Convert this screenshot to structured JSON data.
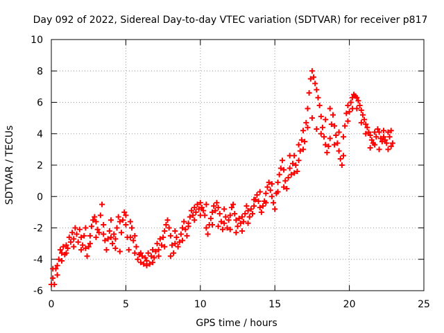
{
  "chart_data": {
    "type": "scatter",
    "title": "Day 092 of 2022, Sidereal Day-to-day VTEC variation (SDTVAR) for receiver p817",
    "xlabel": "GPS time / hours",
    "ylabel": "SDTVAR / TECUs",
    "xlim": [
      0,
      25
    ],
    "ylim": [
      -6,
      10
    ],
    "xticks": [
      0,
      5,
      10,
      15,
      20,
      25
    ],
    "yticks": [
      -6,
      -4,
      -2,
      0,
      2,
      4,
      6,
      8,
      10
    ],
    "grid": true,
    "marker": "+",
    "color": "#ff0000",
    "series": [
      {
        "name": "SDTVAR",
        "points": [
          [
            0.0,
            -5.6
          ],
          [
            0.1,
            -5.2
          ],
          [
            0.2,
            -5.6
          ],
          [
            0.3,
            -4.6
          ],
          [
            0.4,
            -4.4
          ],
          [
            0.5,
            -4.0
          ],
          [
            0.6,
            -3.4
          ],
          [
            0.7,
            -3.6
          ],
          [
            0.8,
            -3.2
          ],
          [
            0.9,
            -3.7
          ],
          [
            1.0,
            -3.1
          ],
          [
            1.1,
            -3.3
          ],
          [
            1.2,
            -2.6
          ],
          [
            1.3,
            -2.9
          ],
          [
            1.4,
            -2.3
          ],
          [
            1.5,
            -2.7
          ],
          [
            1.6,
            -2.0
          ],
          [
            1.7,
            -2.4
          ],
          [
            1.8,
            -2.9
          ],
          [
            1.9,
            -2.1
          ],
          [
            2.0,
            -2.6
          ],
          [
            2.1,
            -3.1
          ],
          [
            2.2,
            -2.5
          ],
          [
            2.3,
            -3.3
          ],
          [
            2.4,
            -3.8
          ],
          [
            2.5,
            -3.2
          ],
          [
            2.6,
            -2.5
          ],
          [
            2.7,
            -1.9
          ],
          [
            2.8,
            -1.5
          ],
          [
            2.9,
            -1.3
          ],
          [
            3.0,
            -1.6
          ],
          [
            3.1,
            -2.1
          ],
          [
            3.2,
            -2.3
          ],
          [
            3.3,
            -1.2
          ],
          [
            3.4,
            -0.5
          ],
          [
            3.5,
            -2.4
          ],
          [
            3.6,
            -2.8
          ],
          [
            3.7,
            -3.4
          ],
          [
            3.8,
            -2.7
          ],
          [
            3.9,
            -2.2
          ],
          [
            4.0,
            -2.6
          ],
          [
            4.1,
            -3.0
          ],
          [
            4.2,
            -2.4
          ],
          [
            4.3,
            -2.7
          ],
          [
            4.4,
            -2.0
          ],
          [
            4.5,
            -1.3
          ],
          [
            4.6,
            -1.6
          ],
          [
            4.7,
            -2.3
          ],
          [
            4.8,
            -1.5
          ],
          [
            4.9,
            -1.0
          ],
          [
            5.0,
            -1.8
          ],
          [
            5.1,
            -2.6
          ],
          [
            5.2,
            -3.4
          ],
          [
            5.3,
            -2.6
          ],
          [
            5.4,
            -2.0
          ],
          [
            5.5,
            -2.8
          ],
          [
            5.6,
            -3.6
          ],
          [
            5.7,
            -3.2
          ],
          [
            5.8,
            -4.0
          ],
          [
            5.9,
            -3.7
          ],
          [
            6.0,
            -4.2
          ],
          [
            6.1,
            -3.8
          ],
          [
            6.2,
            -4.3
          ],
          [
            6.3,
            -3.9
          ],
          [
            6.4,
            -4.1
          ],
          [
            6.5,
            -3.6
          ],
          [
            6.6,
            -4.3
          ],
          [
            6.7,
            -3.8
          ],
          [
            6.8,
            -3.4
          ],
          [
            6.9,
            -3.9
          ],
          [
            7.0,
            -3.5
          ],
          [
            7.1,
            -3.0
          ],
          [
            7.2,
            -3.4
          ],
          [
            7.3,
            -2.7
          ],
          [
            7.4,
            -3.1
          ],
          [
            7.5,
            -2.6
          ],
          [
            7.6,
            -2.2
          ],
          [
            7.7,
            -1.8
          ],
          [
            7.8,
            -1.5
          ],
          [
            7.9,
            -2.0
          ],
          [
            8.0,
            -2.5
          ],
          [
            8.1,
            -3.1
          ],
          [
            8.2,
            -3.6
          ],
          [
            8.3,
            -3.0
          ],
          [
            8.4,
            -2.6
          ],
          [
            8.5,
            -3.2
          ],
          [
            8.6,
            -2.9
          ],
          [
            8.7,
            -2.4
          ],
          [
            8.8,
            -2.0
          ],
          [
            8.9,
            -1.6
          ],
          [
            9.0,
            -2.1
          ],
          [
            9.1,
            -2.5
          ],
          [
            9.2,
            -1.7
          ],
          [
            9.3,
            -1.3
          ],
          [
            9.4,
            -0.9
          ],
          [
            9.5,
            -1.2
          ],
          [
            9.6,
            -0.7
          ],
          [
            9.7,
            -1.0
          ],
          [
            9.8,
            -0.5
          ],
          [
            9.9,
            -0.8
          ],
          [
            10.0,
            -0.4
          ],
          [
            10.1,
            -0.7
          ],
          [
            10.2,
            -0.9
          ],
          [
            10.3,
            -1.2
          ],
          [
            10.4,
            -2.0
          ],
          [
            10.5,
            -2.4
          ],
          [
            10.6,
            -1.8
          ],
          [
            10.7,
            -1.4
          ],
          [
            10.8,
            -1.0
          ],
          [
            10.9,
            -0.6
          ],
          [
            11.0,
            -0.9
          ],
          [
            11.1,
            -0.4
          ],
          [
            11.2,
            -0.7
          ],
          [
            11.3,
            -1.1
          ],
          [
            11.4,
            -1.6
          ],
          [
            11.5,
            -2.1
          ],
          [
            11.6,
            -1.7
          ],
          [
            11.7,
            -1.3
          ],
          [
            11.8,
            -2.0
          ],
          [
            11.9,
            -1.5
          ],
          [
            12.0,
            -1.2
          ],
          [
            12.1,
            -0.7
          ],
          [
            12.2,
            -0.5
          ],
          [
            12.3,
            -1.1
          ],
          [
            12.4,
            -1.5
          ],
          [
            12.5,
            -1.9
          ],
          [
            12.6,
            -1.4
          ],
          [
            12.7,
            -1.7
          ],
          [
            12.8,
            -2.2
          ],
          [
            12.9,
            -1.6
          ],
          [
            13.0,
            -1.1
          ],
          [
            13.1,
            -0.6
          ],
          [
            13.2,
            -0.9
          ],
          [
            13.3,
            -1.3
          ],
          [
            13.4,
            -0.8
          ],
          [
            13.5,
            -1.1
          ],
          [
            13.6,
            -0.6
          ],
          [
            13.7,
            -0.2
          ],
          [
            13.8,
            0.1
          ],
          [
            13.9,
            -0.3
          ],
          [
            14.0,
            -0.7
          ],
          [
            14.1,
            -1.0
          ],
          [
            14.2,
            -0.6
          ],
          [
            14.3,
            -0.3
          ],
          [
            14.4,
            0.2
          ],
          [
            14.5,
            0.6
          ],
          [
            14.6,
            0.9
          ],
          [
            14.7,
            0.4
          ],
          [
            14.8,
            0.0
          ],
          [
            14.9,
            -0.4
          ],
          [
            15.0,
            -0.8
          ],
          [
            15.1,
            0.2
          ],
          [
            15.2,
            0.9
          ],
          [
            15.3,
            1.4
          ],
          [
            15.4,
            1.8
          ],
          [
            15.5,
            2.3
          ],
          [
            15.6,
            1.7
          ],
          [
            15.7,
            1.0
          ],
          [
            15.8,
            0.5
          ],
          [
            15.9,
            1.2
          ],
          [
            16.0,
            1.8
          ],
          [
            16.1,
            1.4
          ],
          [
            16.2,
            2.1
          ],
          [
            16.3,
            2.6
          ],
          [
            16.4,
            2.0
          ],
          [
            16.5,
            1.6
          ],
          [
            16.6,
            2.3
          ],
          [
            16.7,
            2.9
          ],
          [
            16.8,
            3.6
          ],
          [
            16.9,
            4.2
          ],
          [
            17.0,
            3.5
          ],
          [
            17.1,
            4.7
          ],
          [
            17.2,
            5.6
          ],
          [
            17.3,
            6.6
          ],
          [
            17.4,
            7.5
          ],
          [
            17.5,
            8.0
          ],
          [
            17.6,
            7.6
          ],
          [
            17.7,
            7.2
          ],
          [
            17.8,
            6.8
          ],
          [
            17.9,
            6.3
          ],
          [
            18.0,
            5.8
          ],
          [
            18.1,
            5.1
          ],
          [
            18.2,
            4.4
          ],
          [
            18.3,
            3.8
          ],
          [
            18.4,
            3.3
          ],
          [
            18.5,
            2.8
          ],
          [
            18.6,
            3.2
          ],
          [
            18.7,
            3.7
          ],
          [
            18.8,
            4.6
          ],
          [
            18.9,
            5.2
          ],
          [
            19.0,
            4.5
          ],
          [
            19.1,
            3.9
          ],
          [
            19.2,
            3.4
          ],
          [
            19.3,
            2.9
          ],
          [
            19.4,
            2.4
          ],
          [
            19.5,
            2.0
          ],
          [
            19.6,
            3.8
          ],
          [
            19.7,
            4.5
          ],
          [
            19.8,
            5.3
          ],
          [
            19.9,
            5.8
          ],
          [
            20.0,
            5.4
          ],
          [
            20.1,
            6.0
          ],
          [
            20.2,
            6.3
          ],
          [
            20.3,
            6.5
          ],
          [
            20.4,
            6.4
          ],
          [
            20.5,
            6.3
          ],
          [
            20.6,
            6.1
          ],
          [
            20.7,
            5.8
          ],
          [
            20.8,
            5.5
          ],
          [
            20.9,
            5.2
          ],
          [
            21.0,
            4.9
          ],
          [
            21.1,
            4.6
          ],
          [
            21.2,
            4.4
          ],
          [
            21.3,
            4.1
          ],
          [
            21.4,
            3.9
          ],
          [
            21.5,
            3.6
          ],
          [
            21.6,
            3.4
          ],
          [
            21.7,
            3.3
          ],
          [
            21.8,
            3.8
          ],
          [
            21.9,
            4.3
          ],
          [
            22.0,
            4.1
          ],
          [
            22.1,
            3.7
          ],
          [
            22.2,
            3.5
          ],
          [
            22.3,
            3.8
          ],
          [
            22.4,
            3.6
          ],
          [
            22.5,
            3.4
          ],
          [
            22.6,
            4.1
          ],
          [
            22.7,
            3.8
          ],
          [
            22.8,
            3.2
          ],
          [
            22.9,
            3.4
          ],
          [
            0.1,
            -4.6
          ],
          [
            0.4,
            -5.0
          ],
          [
            0.7,
            -4.1
          ],
          [
            1.0,
            -3.6
          ],
          [
            1.5,
            -3.2
          ],
          [
            2.0,
            -3.4
          ],
          [
            2.3,
            -2.0
          ],
          [
            2.6,
            -3.0
          ],
          [
            3.0,
            -2.6
          ],
          [
            3.5,
            -1.8
          ],
          [
            4.0,
            -1.5
          ],
          [
            4.3,
            -3.3
          ],
          [
            4.6,
            -3.5
          ],
          [
            5.0,
            -1.2
          ],
          [
            5.3,
            -1.6
          ],
          [
            5.6,
            -2.5
          ],
          [
            6.0,
            -3.6
          ],
          [
            6.4,
            -4.4
          ],
          [
            6.8,
            -4.2
          ],
          [
            7.2,
            -3.8
          ],
          [
            7.6,
            -3.2
          ],
          [
            8.0,
            -3.8
          ],
          [
            8.3,
            -2.2
          ],
          [
            8.8,
            -2.8
          ],
          [
            9.2,
            -1.9
          ],
          [
            9.6,
            -1.5
          ],
          [
            10.0,
            -1.2
          ],
          [
            10.4,
            -0.5
          ],
          [
            10.8,
            -1.8
          ],
          [
            11.2,
            -1.9
          ],
          [
            11.6,
            -0.8
          ],
          [
            12.0,
            -2.1
          ],
          [
            12.4,
            -2.3
          ],
          [
            12.8,
            -1.3
          ],
          [
            13.2,
            -1.7
          ],
          [
            13.6,
            -0.2
          ],
          [
            14.0,
            0.3
          ],
          [
            14.4,
            -0.4
          ],
          [
            14.8,
            0.8
          ],
          [
            15.2,
            0.3
          ],
          [
            15.6,
            0.6
          ],
          [
            16.0,
            2.6
          ],
          [
            16.3,
            1.5
          ],
          [
            16.6,
            3.3
          ],
          [
            16.9,
            3.0
          ],
          [
            17.2,
            4.4
          ],
          [
            17.5,
            5.0
          ],
          [
            17.8,
            4.3
          ],
          [
            18.1,
            4.0
          ],
          [
            18.4,
            4.9
          ],
          [
            18.7,
            5.6
          ],
          [
            19.0,
            3.3
          ],
          [
            19.3,
            4.1
          ],
          [
            19.6,
            2.6
          ],
          [
            19.9,
            4.8
          ],
          [
            20.2,
            5.6
          ],
          [
            20.5,
            5.6
          ],
          [
            20.8,
            4.7
          ],
          [
            21.1,
            4.0
          ],
          [
            21.4,
            3.1
          ],
          [
            21.7,
            4.1
          ],
          [
            22.0,
            3.0
          ],
          [
            22.3,
            4.2
          ],
          [
            22.6,
            3.0
          ],
          [
            22.8,
            4.2
          ]
        ]
      }
    ]
  }
}
